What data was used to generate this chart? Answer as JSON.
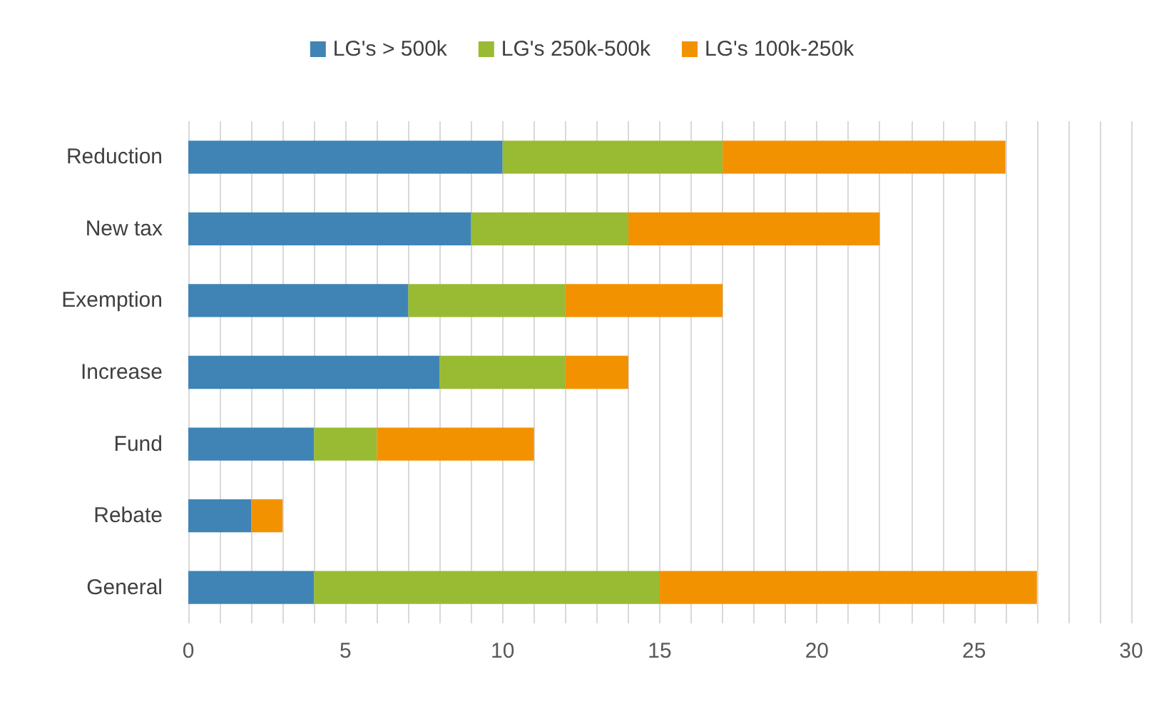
{
  "chart_data": {
    "type": "bar",
    "orientation": "horizontal",
    "stacked": true,
    "categories": [
      "Reduction",
      "New tax",
      "Exemption",
      "Increase",
      "Fund",
      "Rebate",
      "General"
    ],
    "series": [
      {
        "name": "LG's > 500k",
        "color": "#3f84b5",
        "values": [
          10,
          9,
          7,
          8,
          4,
          2,
          4
        ]
      },
      {
        "name": "LG's 250k-500k",
        "color": "#99bb33",
        "values": [
          7,
          5,
          5,
          4,
          2,
          0,
          11
        ]
      },
      {
        "name": "LG's 100k-250k",
        "color": "#f39200",
        "values": [
          9,
          8,
          5,
          2,
          5,
          1,
          12
        ]
      }
    ],
    "xlim": [
      0,
      30
    ],
    "xticks": [
      0,
      {
        "value": 1,
        "label": null
      },
      {
        "value": 2,
        "label": null
      },
      {
        "value": 3,
        "label": null
      },
      {
        "value": 4,
        "label": null
      },
      5,
      {
        "value": 6,
        "label": null
      },
      {
        "value": 7,
        "label": null
      },
      {
        "value": 8,
        "label": null
      },
      {
        "value": 9,
        "label": null
      },
      10,
      {
        "value": 11,
        "label": null
      },
      {
        "value": 12,
        "label": null
      },
      {
        "value": 13,
        "label": null
      },
      {
        "value": 14,
        "label": null
      },
      15,
      {
        "value": 16,
        "label": null
      },
      {
        "value": 17,
        "label": null
      },
      {
        "value": 18,
        "label": null
      },
      {
        "value": 19,
        "label": null
      },
      20,
      {
        "value": 21,
        "label": null
      },
      {
        "value": 22,
        "label": null
      },
      {
        "value": 23,
        "label": null
      },
      {
        "value": 24,
        "label": null
      },
      25,
      {
        "value": 26,
        "label": null
      },
      {
        "value": 27,
        "label": null
      },
      {
        "value": 28,
        "label": null
      },
      {
        "value": 29,
        "label": null
      },
      30
    ],
    "grid": "x",
    "legend": "top"
  }
}
